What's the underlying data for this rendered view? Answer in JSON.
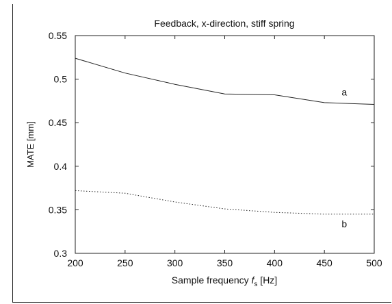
{
  "chart_data": {
    "type": "line",
    "title": "Feedback, x-direction, stiff spring",
    "xlabel_parts": [
      "Sample frequency ",
      "f",
      "s",
      " [Hz]"
    ],
    "ylabel": "MATE [mm]",
    "xlim": [
      200,
      500
    ],
    "ylim": [
      0.3,
      0.55
    ],
    "x_ticks": [
      200,
      250,
      300,
      350,
      400,
      450,
      500
    ],
    "y_ticks": [
      0.3,
      0.35,
      0.4,
      0.45,
      0.5,
      0.55
    ],
    "y_tick_labels": [
      "0.3",
      "0.35",
      "0.4",
      "0.45",
      "0.5",
      "0.55"
    ],
    "grid": false,
    "series": [
      {
        "name": "a",
        "style": "solid",
        "color": "#222222",
        "x": [
          200,
          250,
          300,
          350,
          400,
          450,
          500
        ],
        "y": [
          0.524,
          0.507,
          0.494,
          0.483,
          0.482,
          0.473,
          0.471
        ]
      },
      {
        "name": "b",
        "style": "dotted",
        "color": "#222222",
        "x": [
          200,
          250,
          300,
          350,
          400,
          450,
          500
        ],
        "y": [
          0.372,
          0.369,
          0.359,
          0.351,
          0.347,
          0.345,
          0.345
        ]
      }
    ],
    "series_labels": [
      {
        "series": "a",
        "text": "a",
        "x": 470,
        "y": 0.485
      },
      {
        "series": "b",
        "text": "b",
        "x": 470,
        "y": 0.334
      }
    ]
  }
}
